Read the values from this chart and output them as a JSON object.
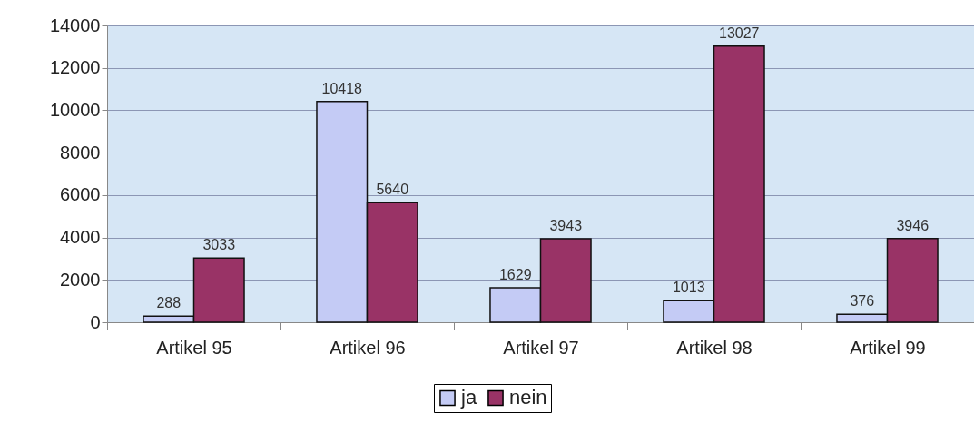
{
  "chart_data": {
    "type": "bar",
    "categories": [
      "Artikel 95",
      "Artikel 96",
      "Artikel 97",
      "Artikel 98",
      "Artikel 99"
    ],
    "series": [
      {
        "name": "ja",
        "color": "#c4cbf5",
        "values": [
          288,
          10418,
          1629,
          1013,
          376
        ]
      },
      {
        "name": "nein",
        "color": "#993366",
        "values": [
          3033,
          5640,
          3943,
          13027,
          3946
        ]
      }
    ],
    "ylim": [
      0,
      14000
    ],
    "yticks": [
      0,
      2000,
      4000,
      6000,
      8000,
      10000,
      12000,
      14000
    ],
    "grid": "y",
    "legend": "bottom",
    "data_labels": true
  }
}
